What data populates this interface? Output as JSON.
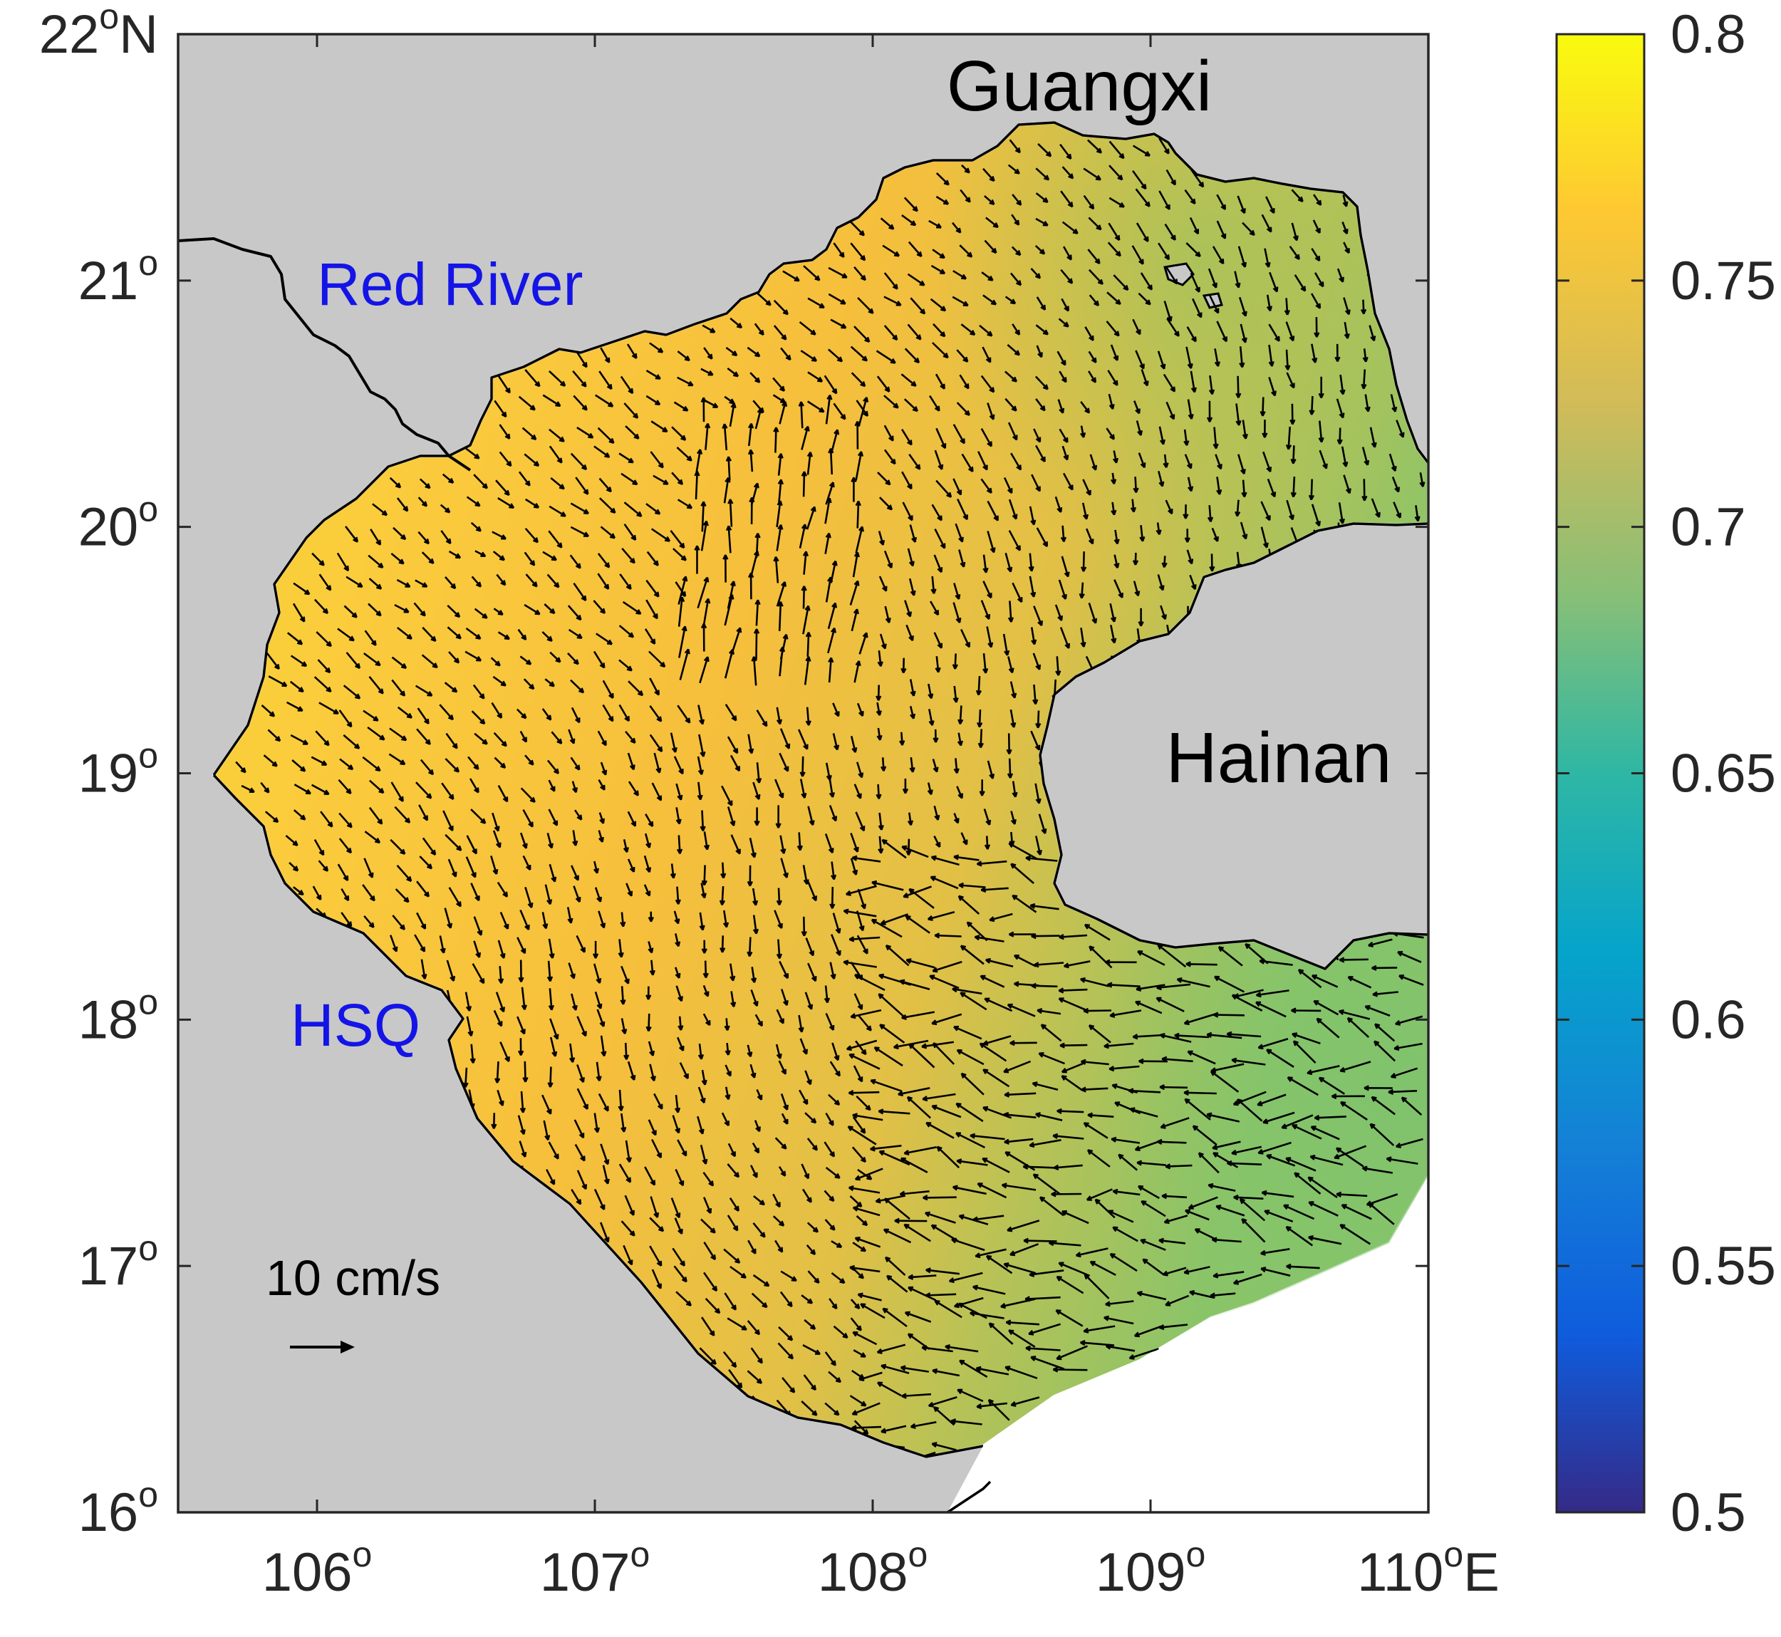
{
  "map": {
    "lon_range": [
      105.5,
      110.0
    ],
    "lat_range": [
      16.0,
      22.0
    ],
    "land_color": "#c8c8c8",
    "coast_color": "#000000",
    "vector_color": "#000000",
    "x_ticks": [
      {
        "value": 106,
        "deg": "106",
        "sup": "o",
        "suffix": ""
      },
      {
        "value": 107,
        "deg": "107",
        "sup": "o",
        "suffix": ""
      },
      {
        "value": 108,
        "deg": "108",
        "sup": "o",
        "suffix": ""
      },
      {
        "value": 109,
        "deg": "109",
        "sup": "o",
        "suffix": ""
      },
      {
        "value": 110,
        "deg": "110",
        "sup": "o",
        "suffix": "E"
      }
    ],
    "y_ticks": [
      {
        "value": 22,
        "deg": "22",
        "sup": "o",
        "suffix": "N"
      },
      {
        "value": 21,
        "deg": "21",
        "sup": "o",
        "suffix": ""
      },
      {
        "value": 20,
        "deg": "20",
        "sup": "o",
        "suffix": ""
      },
      {
        "value": 19,
        "deg": "19",
        "sup": "o",
        "suffix": ""
      },
      {
        "value": 18,
        "deg": "18",
        "sup": "o",
        "suffix": ""
      },
      {
        "value": 17,
        "deg": "17",
        "sup": "o",
        "suffix": ""
      },
      {
        "value": 16,
        "deg": "16",
        "sup": "o",
        "suffix": ""
      }
    ],
    "labels": {
      "guangxi": "Guangxi",
      "red_river": "Red River",
      "hainan": "Hainan",
      "hsq": "HSQ"
    },
    "label_colors": {
      "land": "#000000",
      "feature": "#1414e6"
    },
    "scale": {
      "label": "10 cm/s",
      "speed_cm_s": 10
    }
  },
  "colorbar": {
    "colormap": "parula",
    "range": [
      0.5,
      0.8
    ],
    "tick_labels": [
      "0.8",
      "0.75",
      "0.7",
      "0.65",
      "0.6",
      "0.55",
      "0.5"
    ],
    "stops": [
      "#352a87",
      "#0f5cdd",
      "#1481d6",
      "#06a4ca",
      "#2eb7a4",
      "#87bf77",
      "#d1bb59",
      "#fec832",
      "#f9fb0e"
    ]
  }
}
